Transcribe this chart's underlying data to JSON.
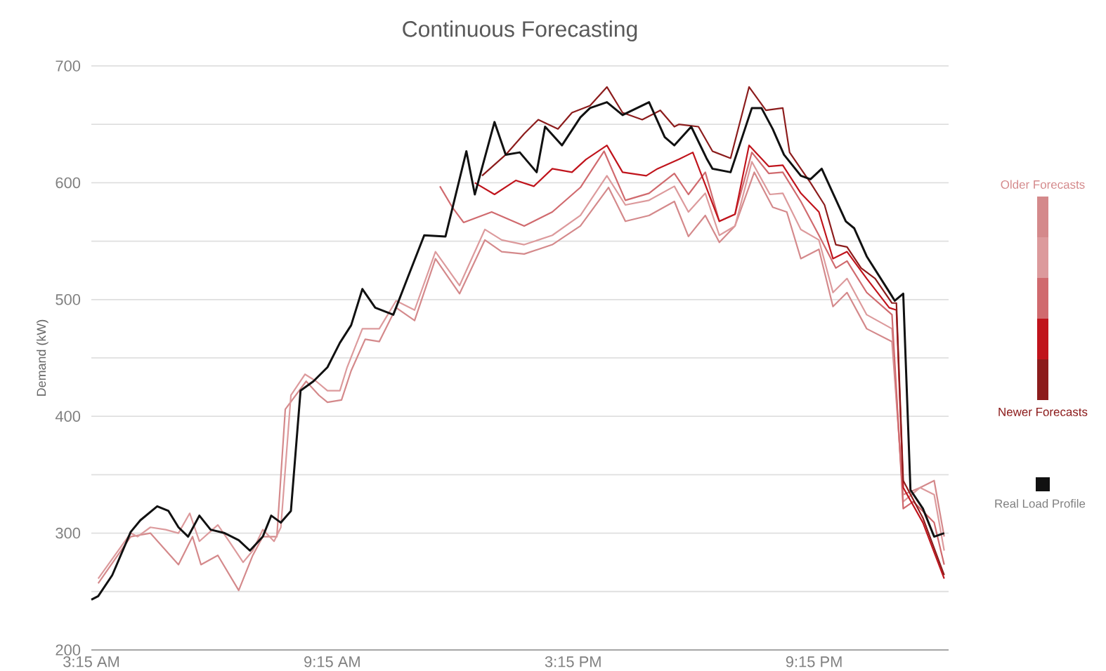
{
  "chart_data": {
    "type": "line",
    "title": "Continuous Forecasting",
    "ylabel": "Demand (kW)",
    "xlim": [
      3.25,
      24.6
    ],
    "ylim": [
      200,
      700
    ],
    "xticks": [
      {
        "value": 3.25,
        "label": "3:15 AM"
      },
      {
        "value": 9.25,
        "label": "9:15 AM"
      },
      {
        "value": 15.25,
        "label": "3:15 PM"
      },
      {
        "value": 21.25,
        "label": "9:15 PM"
      }
    ],
    "yticks": [
      200,
      {
        "value": 250,
        "label": null
      },
      300,
      {
        "value": 350,
        "label": null
      },
      400,
      {
        "value": 450,
        "label": null
      },
      500,
      {
        "value": 550,
        "label": null
      },
      600,
      {
        "value": 650,
        "label": null
      },
      700
    ],
    "grid": "y",
    "legend": "right",
    "series": [
      {
        "name": "Older Forecasts",
        "color": "#d4898b",
        "x": [
          3.42,
          4.23,
          4.72,
          5.42,
          5.77,
          5.98,
          6.4,
          6.92,
          7.27,
          7.52,
          7.87,
          8.08,
          8.6,
          8.92,
          9.13,
          9.48,
          9.72,
          10.07,
          10.42,
          10.84,
          11.3,
          11.82,
          12.42,
          13.05,
          13.47,
          14.03,
          14.73,
          15.43,
          16.13,
          16.55,
          17.14,
          17.77,
          18.12,
          18.54,
          18.89,
          19.28,
          19.76,
          20.22,
          20.57,
          20.92,
          21.37,
          21.72,
          22.07,
          22.56,
          23.19,
          23.47,
          23.89,
          24.24,
          24.49
        ],
        "values": [
          257,
          297,
          300,
          273,
          297,
          273,
          281,
          251,
          281,
          297,
          297,
          406,
          430,
          418,
          412,
          414,
          439,
          466,
          464,
          493,
          482,
          535,
          505,
          551,
          541,
          539,
          547,
          563,
          596,
          567,
          572,
          584,
          554,
          572,
          549,
          563,
          609,
          579,
          575,
          535,
          543,
          494,
          506,
          475,
          464,
          333,
          339,
          345,
          297
        ]
      },
      {
        "color": "#dc9a9c",
        "x": [
          3.42,
          4.23,
          4.4,
          4.72,
          5.1,
          5.42,
          5.7,
          5.94,
          6.4,
          6.68,
          7.03,
          7.27,
          7.52,
          7.8,
          7.97,
          8.22,
          8.57,
          8.85,
          9.13,
          9.44,
          9.62,
          10.0,
          10.42,
          10.84,
          11.3,
          11.82,
          12.42,
          13.05,
          13.47,
          14.03,
          14.73,
          15.43,
          16.09,
          16.55,
          17.14,
          17.77,
          18.12,
          18.54,
          18.89,
          19.28,
          19.7,
          20.15,
          20.47,
          20.92,
          21.37,
          21.72,
          22.07,
          22.56,
          23.19,
          23.47,
          23.89,
          24.24,
          24.49
        ],
        "values": [
          261,
          300,
          297,
          305,
          303,
          300,
          317,
          293,
          307,
          293,
          275,
          285,
          303,
          293,
          305,
          418,
          436,
          430,
          422,
          422,
          442,
          475,
          475,
          499,
          491,
          541,
          512,
          560,
          551,
          547,
          555,
          572,
          606,
          581,
          585,
          597,
          575,
          591,
          555,
          563,
          618,
          590,
          591,
          560,
          551,
          506,
          518,
          487,
          475,
          327,
          339,
          333,
          285
        ]
      },
      {
        "color": "#d06a6e",
        "x": [
          11.93,
          12.24,
          12.52,
          13.22,
          14.03,
          14.73,
          15.43,
          16.02,
          16.55,
          17.14,
          17.77,
          18.12,
          18.54,
          18.89,
          19.28,
          19.7,
          20.12,
          20.47,
          20.92,
          21.37,
          21.79,
          22.07,
          22.56,
          23.19,
          23.47,
          23.72,
          24.24,
          24.49
        ],
        "values": [
          597,
          579,
          566,
          575,
          563,
          575,
          596,
          627,
          585,
          591,
          608,
          590,
          609,
          567,
          573,
          626,
          608,
          609,
          584,
          555,
          527,
          533,
          506,
          487,
          321,
          327,
          309,
          273
        ]
      },
      {
        "color": "#c0141c",
        "x": [
          12.8,
          13.29,
          13.82,
          14.27,
          14.73,
          15.22,
          15.57,
          16.09,
          16.48,
          17.07,
          17.35,
          17.88,
          18.23,
          18.89,
          19.28,
          19.63,
          20.12,
          20.47,
          20.92,
          21.37,
          21.72,
          22.07,
          22.56,
          23.12,
          23.3,
          23.47,
          23.96,
          24.49
        ],
        "values": [
          600,
          590,
          602,
          597,
          612,
          609,
          620,
          632,
          609,
          606,
          612,
          620,
          626,
          567,
          573,
          632,
          614,
          615,
          591,
          575,
          535,
          541,
          518,
          493,
          491,
          339,
          309,
          261
        ]
      },
      {
        "name": "Newer Forecasts",
        "color": "#8c1c1c",
        "x": [
          12.98,
          13.57,
          14.03,
          14.38,
          14.87,
          15.22,
          15.67,
          16.09,
          16.48,
          16.97,
          17.42,
          17.77,
          17.88,
          18.37,
          18.72,
          19.17,
          19.63,
          20.05,
          20.47,
          20.64,
          21.16,
          21.51,
          21.79,
          22.07,
          22.42,
          22.77,
          23.19,
          23.3,
          23.47,
          23.96,
          24.49
        ],
        "values": [
          606,
          624,
          642,
          654,
          646,
          660,
          666,
          682,
          660,
          654,
          662,
          648,
          650,
          648,
          627,
          621,
          682,
          662,
          664,
          626,
          600,
          581,
          547,
          545,
          527,
          518,
          497,
          497,
          345,
          313,
          264
        ]
      },
      {
        "name": "Real Load Profile",
        "color": "#111111",
        "x": [
          3.25,
          3.42,
          3.77,
          4.23,
          4.47,
          4.89,
          5.17,
          5.42,
          5.66,
          5.94,
          6.22,
          6.57,
          6.92,
          7.2,
          7.52,
          7.73,
          7.97,
          8.22,
          8.46,
          8.78,
          9.13,
          9.44,
          9.72,
          10.0,
          10.32,
          10.77,
          11.12,
          11.54,
          12.07,
          12.59,
          12.8,
          13.29,
          13.57,
          13.92,
          14.34,
          14.55,
          14.97,
          15.43,
          15.67,
          16.09,
          16.48,
          17.14,
          17.53,
          17.77,
          18.19,
          18.57,
          18.72,
          19.17,
          19.7,
          19.94,
          20.22,
          20.5,
          20.92,
          21.16,
          21.44,
          21.72,
          22.04,
          22.25,
          22.56,
          22.91,
          23.26,
          23.47,
          23.65,
          23.96,
          24.24,
          24.49
        ],
        "values": [
          243,
          246,
          264,
          301,
          311,
          323,
          319,
          305,
          297,
          315,
          303,
          300,
          294,
          285,
          297,
          315,
          309,
          319,
          422,
          430,
          442,
          463,
          478,
          509,
          493,
          487,
          518,
          555,
          554,
          627,
          590,
          652,
          624,
          626,
          609,
          648,
          632,
          656,
          664,
          669,
          658,
          669,
          639,
          632,
          648,
          621,
          612,
          609,
          664,
          664,
          646,
          624,
          606,
          603,
          612,
          591,
          567,
          561,
          537,
          518,
          499,
          505,
          337,
          321,
          297,
          300
        ]
      }
    ]
  }
}
